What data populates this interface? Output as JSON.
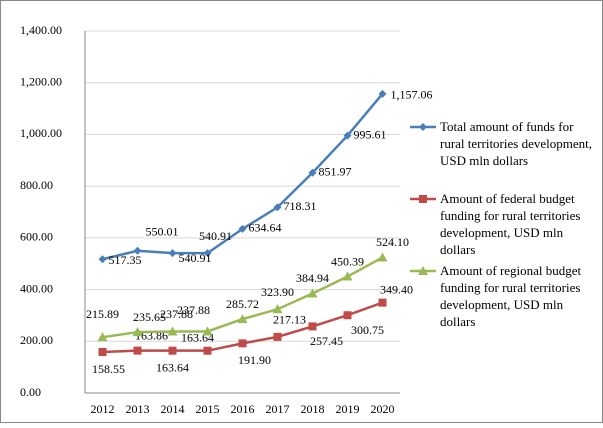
{
  "chart_data": {
    "type": "line",
    "categories": [
      "2012",
      "2013",
      "2014",
      "2015",
      "2016",
      "2017",
      "2018",
      "2019",
      "2020"
    ],
    "series": [
      {
        "name": "Total amount of funds for rural territories development, USD mln dollars",
        "color": "#4a7ebb",
        "marker": "diamond",
        "values": [
          517.35,
          550.01,
          540.91,
          540.91,
          634.64,
          718.31,
          851.97,
          995.61,
          1157.06
        ],
        "value_labels": [
          "517.35",
          "550.01",
          "540.91",
          "540.91",
          "634.64",
          "718.31",
          "851.97",
          "995.61",
          "1,157.06"
        ]
      },
      {
        "name": "Amount of federal budget funding for rural territories development, USD mln dollars",
        "color": "#be4b48",
        "marker": "square",
        "values": [
          158.55,
          163.86,
          163.64,
          163.64,
          191.9,
          217.13,
          257.45,
          300.75,
          349.4
        ],
        "value_labels": [
          "158.55",
          "163.86",
          "163.64",
          "163.64",
          "191.90",
          "217.13",
          "257.45",
          "300.75",
          "349.40"
        ]
      },
      {
        "name": "Amount of regional budget funding for rural territories development, USD mln dollars",
        "color": "#98b954",
        "marker": "triangle",
        "values": [
          215.89,
          235.65,
          237.88,
          237.88,
          285.72,
          323.9,
          384.94,
          450.39,
          524.1
        ],
        "value_labels": [
          "215.89",
          "235.65",
          "237.88",
          "237.88",
          "285.72",
          "323.90",
          "384.94",
          "450.39",
          "524.10"
        ]
      }
    ],
    "ylim": [
      0,
      1400
    ],
    "yticks": [
      {
        "value": 0,
        "label": "0.00"
      },
      {
        "value": 200,
        "label": "200.00"
      },
      {
        "value": 400,
        "label": "400.00"
      },
      {
        "value": 600,
        "label": "600.00"
      },
      {
        "value": 800,
        "label": "800.00"
      },
      {
        "value": 1000,
        "label": "1,000.00"
      },
      {
        "value": 1200,
        "label": "1,200.00"
      },
      {
        "value": 1400,
        "label": "1,400.00"
      }
    ],
    "grid": true,
    "legend": "right"
  }
}
